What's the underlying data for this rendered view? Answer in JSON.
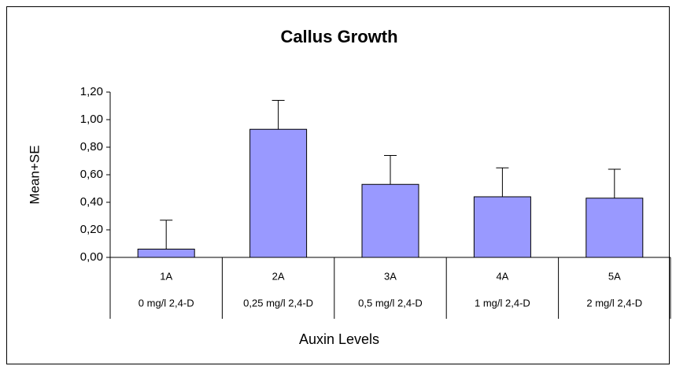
{
  "chart_data": {
    "type": "bar",
    "title": "Callus Growth",
    "x_label": "Auxin Levels",
    "y_label": "Mean+SE",
    "categories": [
      "1A",
      "2A",
      "3A",
      "4A",
      "5A"
    ],
    "category_details": [
      "0 mg/l 2,4-D",
      "0,25 mg/l 2,4-D",
      "0,5 mg/l 2,4-D",
      "1 mg/l 2,4-D",
      "2 mg/l 2,4-D"
    ],
    "values": [
      0.06,
      0.93,
      0.53,
      0.44,
      0.43
    ],
    "errors": [
      0.21,
      0.21,
      0.21,
      0.21,
      0.21
    ],
    "color": "#9999ff",
    "ylim": [
      0,
      1.2
    ],
    "yticks": [
      {
        "value": 0,
        "label": "0,00"
      },
      {
        "value": 0.2,
        "label": "0,20"
      },
      {
        "value": 0.4,
        "label": "0,40"
      },
      {
        "value": 0.6,
        "label": "0,60"
      },
      {
        "value": 0.8,
        "label": "0,80"
      },
      {
        "value": 1.0,
        "label": "1,00"
      },
      {
        "value": 1.2,
        "label": "1,20"
      }
    ]
  }
}
